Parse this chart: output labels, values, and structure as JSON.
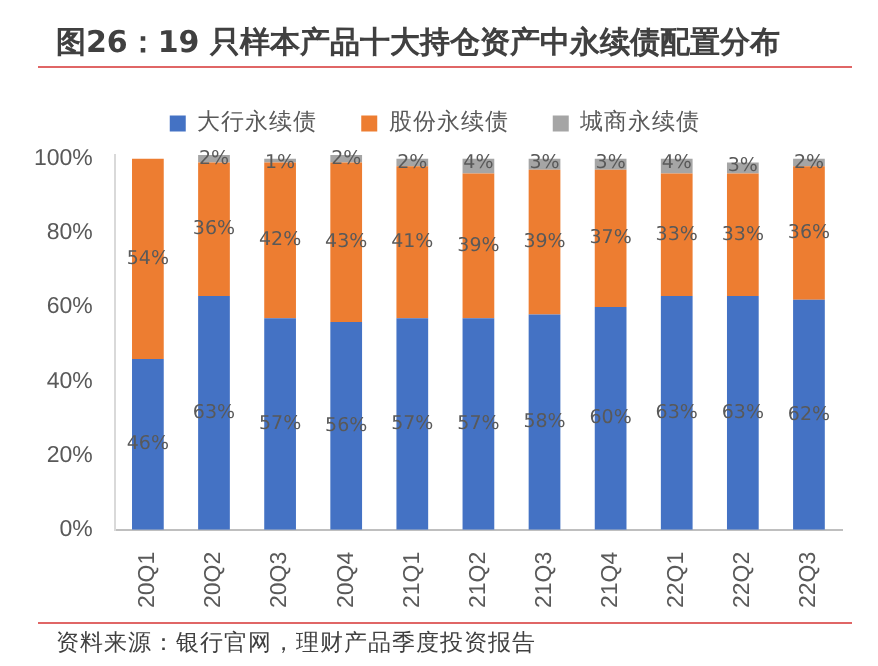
{
  "chart_data": {
    "type": "bar",
    "title": "图26：19 只样本产品十大持仓资产中永续债配置分布",
    "stacked": true,
    "categories": [
      "20Q1",
      "20Q2",
      "20Q3",
      "20Q4",
      "21Q1",
      "21Q2",
      "21Q3",
      "21Q4",
      "22Q1",
      "22Q2",
      "22Q3"
    ],
    "series": [
      {
        "name": "大行永续债",
        "color": "#4472c4",
        "values": [
          46,
          63,
          57,
          56,
          57,
          57,
          58,
          60,
          63,
          63,
          62
        ],
        "value_labels": [
          "46%",
          "63%",
          "57%",
          "56%",
          "57%",
          "57%",
          "58%",
          "60%",
          "63%",
          "63%",
          "62%"
        ]
      },
      {
        "name": "股份永续债",
        "color": "#ed7d31",
        "values": [
          54,
          36,
          42,
          43,
          41,
          39,
          39,
          37,
          33,
          33,
          36
        ],
        "value_labels": [
          "54%",
          "36%",
          "42%",
          "43%",
          "41%",
          "39%",
          "39%",
          "37%",
          "33%",
          "33%",
          "36%"
        ]
      },
      {
        "name": "城商永续债",
        "color": "#a5a5a5",
        "values": [
          0,
          2,
          1,
          2,
          2,
          4,
          3,
          3,
          4,
          3,
          2
        ],
        "value_labels": [
          null,
          "2%",
          "1%",
          "2%",
          "2%",
          "4%",
          "3%",
          "3%",
          "4%",
          "3%",
          "2%"
        ]
      }
    ],
    "ylim": [
      0,
      101
    ],
    "yticks": [
      {
        "value": 0,
        "label": "0%"
      },
      {
        "value": 20,
        "label": "20%"
      },
      {
        "value": 40,
        "label": "40%"
      },
      {
        "value": 60,
        "label": "60%"
      },
      {
        "value": 80,
        "label": "80%"
      },
      {
        "value": 100,
        "label": "100%"
      }
    ],
    "grid": false,
    "legend": "top",
    "annotations": [
      "资料来源：银行官网，理财产品季度投资报告"
    ]
  }
}
